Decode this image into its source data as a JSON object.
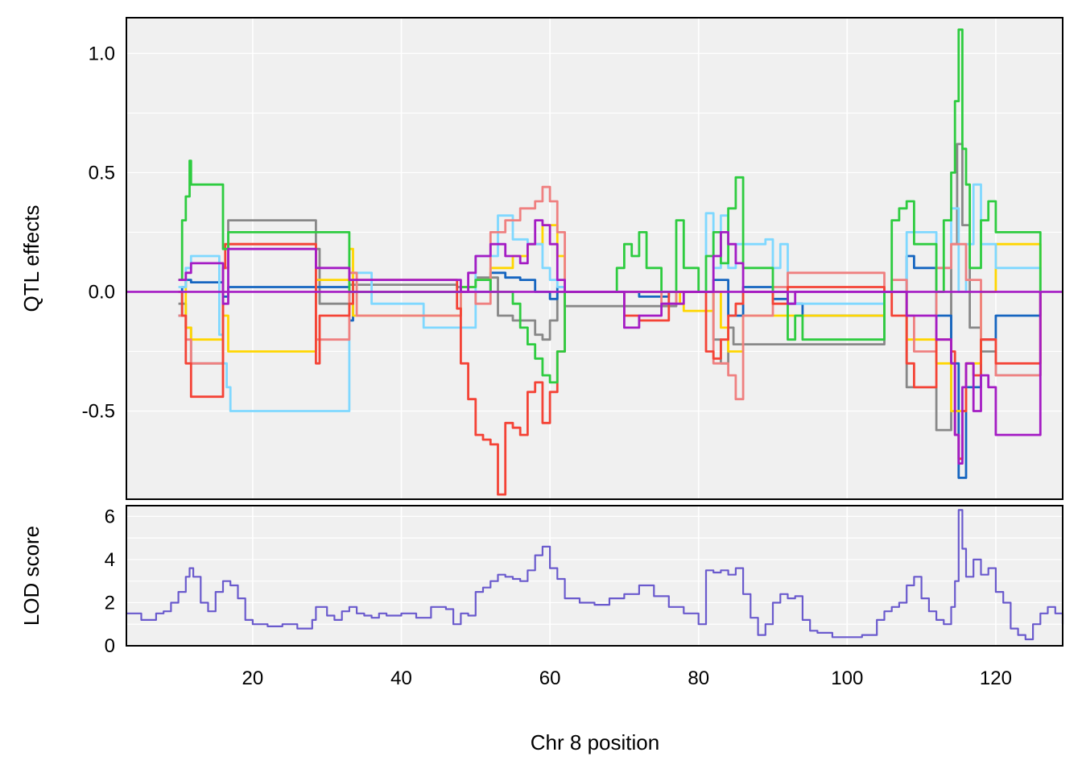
{
  "chart_data": [
    {
      "type": "line",
      "panel": "effects",
      "ylabel": "QTL effects",
      "xlim": [
        3,
        129
      ],
      "ylim": [
        -0.87,
        1.15
      ],
      "yticks": [
        -0.5,
        0.0,
        0.5,
        1.0
      ],
      "ytick_labels": [
        "-0.5",
        "0.0",
        "0.5",
        "1.0"
      ],
      "xticks": [
        20,
        40,
        60,
        80,
        100,
        120
      ],
      "grid": true,
      "series": [
        {
          "color": "#888888",
          "x": [
            10,
            11,
            11.7,
            16,
            16.7,
            28.5,
            29,
            33,
            47.5,
            50,
            53,
            55,
            57,
            58,
            59,
            60,
            61,
            62,
            77,
            82,
            83,
            84,
            84.7,
            105,
            108,
            112,
            114,
            114.8,
            115.5,
            116.5,
            118,
            120,
            126
          ],
          "y": [
            -0.05,
            -0.15,
            -0.3,
            0.1,
            0.3,
            0.18,
            -0.05,
            0.03,
            0.02,
            0.06,
            -0.1,
            -0.12,
            -0.12,
            -0.18,
            -0.2,
            -0.12,
            0.0,
            -0.06,
            0.0,
            -0.2,
            -0.3,
            -0.15,
            -0.22,
            0.0,
            -0.4,
            -0.58,
            0.2,
            0.62,
            0.28,
            -0.15,
            -0.25,
            -0.35,
            0.0
          ]
        },
        {
          "color": "#1565c0",
          "x": [
            10,
            10.5,
            11,
            11.7,
            16,
            16.7,
            33,
            33.5,
            50,
            52,
            54,
            56,
            58,
            60,
            61,
            62,
            70,
            72,
            76,
            80,
            82,
            84,
            86,
            90,
            92,
            94,
            105,
            108,
            109,
            112,
            114,
            115,
            116,
            118,
            120,
            126
          ],
          "y": [
            -0.1,
            0.02,
            0.05,
            0.04,
            -0.02,
            0.02,
            -0.12,
            0.0,
            0.0,
            0.08,
            0.06,
            0.05,
            0.0,
            -0.03,
            0.02,
            0.0,
            0.0,
            -0.02,
            0.0,
            0.0,
            0.05,
            -0.1,
            0.02,
            -0.03,
            -0.05,
            -0.1,
            0.0,
            0.15,
            0.1,
            -0.1,
            -0.3,
            -0.78,
            -0.4,
            -0.2,
            -0.1,
            0.0
          ]
        },
        {
          "color": "#ffd600",
          "x": [
            10,
            11,
            11.7,
            16,
            16.7,
            28.5,
            33,
            33.5,
            48,
            50,
            52,
            55,
            57,
            59,
            61,
            62,
            76,
            77.5,
            78,
            82,
            83,
            84,
            86,
            105,
            108,
            112,
            114,
            116,
            118,
            120,
            126
          ],
          "y": [
            0.05,
            -0.15,
            -0.2,
            -0.1,
            -0.25,
            0.05,
            0.18,
            -0.1,
            0.02,
            0.05,
            0.1,
            0.15,
            0.2,
            0.28,
            0.15,
            0.0,
            0.0,
            -0.05,
            -0.08,
            0.0,
            -0.15,
            -0.25,
            -0.1,
            0.0,
            -0.2,
            -0.3,
            -0.5,
            -0.3,
            0.0,
            0.2,
            0.0
          ]
        },
        {
          "color": "#7fd8ff",
          "x": [
            10,
            11,
            11.7,
            15.5,
            16,
            16.5,
            17,
            33,
            36,
            43,
            50,
            53,
            55,
            57,
            59,
            60,
            61,
            62,
            81,
            82,
            83,
            84,
            85,
            89,
            90,
            91,
            92,
            105,
            108,
            112,
            114,
            115,
            116,
            117,
            118,
            120,
            126
          ],
          "y": [
            0.02,
            0.1,
            0.15,
            -0.18,
            -0.3,
            -0.4,
            -0.5,
            0.08,
            -0.05,
            -0.15,
            0.15,
            0.32,
            0.22,
            0.2,
            0.1,
            0.05,
            0.02,
            0.0,
            0.33,
            0.1,
            0.32,
            0.1,
            0.2,
            0.22,
            0.1,
            0.2,
            -0.05,
            0.0,
            0.25,
            0.1,
            0.35,
            0.0,
            0.2,
            0.45,
            0.2,
            0.1,
            0.0
          ]
        },
        {
          "color": "#ef8080",
          "x": [
            10,
            11,
            11.7,
            16,
            16.7,
            28.5,
            33,
            34,
            48,
            50,
            52,
            54,
            56,
            58,
            59,
            60,
            61,
            62,
            75,
            77,
            80,
            82,
            84,
            85,
            86,
            90,
            92,
            105,
            106,
            108,
            109,
            112,
            114,
            116,
            118,
            120,
            126
          ],
          "y": [
            -0.1,
            -0.2,
            -0.3,
            0.1,
            0.2,
            -0.2,
            0.08,
            -0.1,
            0.0,
            -0.05,
            0.25,
            0.3,
            0.35,
            0.38,
            0.44,
            0.38,
            0.25,
            0.0,
            -0.05,
            0.0,
            0.0,
            -0.3,
            -0.35,
            -0.45,
            -0.1,
            0.02,
            0.08,
            0.0,
            0.05,
            -0.1,
            -0.25,
            0.1,
            0.2,
            0.05,
            -0.2,
            -0.35,
            0.0
          ]
        },
        {
          "color": "#f44336",
          "x": [
            10,
            10.5,
            11,
            11.7,
            16,
            16.3,
            16.7,
            28.5,
            29,
            33,
            33.5,
            47.5,
            48,
            49,
            50,
            51,
            52,
            53,
            54,
            55,
            56,
            57,
            58,
            59,
            60,
            61,
            62,
            70,
            72,
            76,
            80,
            81,
            82,
            83,
            84,
            85,
            86,
            90,
            92,
            105,
            106,
            108,
            109,
            112,
            114,
            114.5,
            115,
            115.5,
            116,
            117,
            118,
            119,
            120,
            126
          ],
          "y": [
            0.0,
            -0.1,
            -0.3,
            -0.44,
            0.1,
            0.2,
            0.2,
            -0.3,
            -0.1,
            -0.05,
            0.05,
            -0.07,
            -0.3,
            -0.45,
            -0.6,
            -0.62,
            -0.64,
            -0.85,
            -0.55,
            -0.57,
            -0.6,
            -0.42,
            -0.38,
            -0.55,
            -0.42,
            -0.25,
            0.0,
            -0.1,
            -0.12,
            0.0,
            0.0,
            -0.25,
            -0.28,
            -0.2,
            -0.1,
            -0.05,
            0.0,
            -0.05,
            0.02,
            0.0,
            -0.1,
            -0.3,
            -0.4,
            -0.2,
            -0.25,
            -0.6,
            -0.7,
            -0.5,
            -0.3,
            -0.35,
            -0.2,
            -0.2,
            -0.3,
            0.0
          ]
        },
        {
          "color": "#2ecc40",
          "x": [
            10,
            10.5,
            11,
            11.5,
            11.7,
            16,
            16.7,
            33,
            48,
            50,
            52,
            55,
            56,
            57,
            58,
            59,
            60,
            61,
            62,
            69,
            70,
            71,
            72,
            73,
            75,
            77,
            78,
            80,
            81,
            82,
            83,
            84,
            85,
            86,
            90,
            92,
            93,
            94,
            95,
            105,
            106,
            107,
            108,
            109,
            112,
            113,
            114,
            114.5,
            115,
            115.5,
            116,
            116.5,
            118,
            119,
            120,
            126
          ],
          "y": [
            0.05,
            0.3,
            0.4,
            0.55,
            0.45,
            0.18,
            0.25,
            0.0,
            0.02,
            0.05,
            0.0,
            -0.05,
            -0.15,
            -0.22,
            -0.28,
            -0.35,
            -0.38,
            -0.25,
            0.0,
            0.1,
            0.2,
            0.15,
            0.25,
            0.1,
            0.0,
            0.3,
            0.1,
            0.0,
            0.15,
            0.25,
            0.12,
            0.35,
            0.48,
            0.1,
            0.0,
            -0.2,
            -0.1,
            -0.2,
            -0.2,
            0.0,
            0.3,
            0.35,
            0.38,
            0.2,
            0.0,
            0.3,
            0.5,
            0.8,
            1.1,
            0.6,
            0.45,
            0.1,
            0.3,
            0.38,
            0.25,
            0.0
          ]
        },
        {
          "color": "#a41cc4",
          "x": [
            10,
            11,
            11.7,
            16,
            16.7,
            28.5,
            33,
            48,
            49,
            50,
            52,
            54,
            56,
            57,
            58,
            59,
            60,
            61,
            62,
            70,
            72,
            75,
            78,
            82,
            83,
            84,
            85,
            86,
            90,
            92,
            93,
            105,
            108,
            112,
            114,
            114.5,
            115,
            115.5,
            116,
            117,
            118,
            119,
            120,
            126
          ],
          "y": [
            0.05,
            0.08,
            0.12,
            -0.05,
            0.18,
            0.1,
            0.05,
            0.0,
            0.08,
            0.15,
            0.2,
            0.15,
            0.12,
            0.2,
            0.3,
            0.28,
            0.2,
            0.05,
            0.0,
            -0.15,
            -0.1,
            -0.05,
            0.0,
            0.15,
            0.25,
            0.2,
            0.12,
            0.0,
            0.0,
            -0.05,
            0.0,
            0.0,
            -0.1,
            -0.2,
            -0.3,
            -0.6,
            -0.72,
            -0.4,
            -0.3,
            -0.5,
            -0.35,
            -0.4,
            -0.6,
            0.0
          ]
        }
      ]
    },
    {
      "type": "line",
      "panel": "lod",
      "ylabel": "LOD score",
      "xlabel": "Chr 8 position",
      "xlim": [
        3,
        129
      ],
      "ylim": [
        0,
        6.5
      ],
      "yticks": [
        0,
        2,
        4,
        6
      ],
      "ytick_labels": [
        "0",
        "2",
        "4",
        "6"
      ],
      "xticks": [
        20,
        40,
        60,
        80,
        100,
        120
      ],
      "xtick_labels": [
        "20",
        "40",
        "60",
        "80",
        "100",
        "120"
      ],
      "grid": true,
      "series": [
        {
          "color": "#6a5acd",
          "x": [
            3,
            4,
            5,
            7,
            8,
            9,
            10,
            11,
            11.5,
            12,
            13,
            14,
            15,
            16,
            17,
            18,
            19,
            20,
            22,
            24,
            26,
            28,
            28.5,
            29,
            30,
            31,
            32,
            33,
            34,
            35,
            36,
            37,
            38,
            40,
            42,
            44,
            46,
            47,
            48,
            49,
            50,
            51,
            52,
            53,
            54,
            55,
            56,
            57,
            58,
            59,
            60,
            61,
            62,
            64,
            66,
            68,
            70,
            72,
            74,
            76,
            78,
            80,
            81,
            82,
            83,
            84,
            85,
            86,
            87,
            88,
            89,
            90,
            91,
            92,
            93,
            94,
            95,
            96,
            98,
            100,
            102,
            104,
            105,
            106,
            107,
            108,
            109,
            110,
            111,
            112,
            113,
            114,
            114.5,
            115,
            115.5,
            116,
            117,
            118,
            119,
            120,
            121,
            122,
            123,
            124,
            125,
            126,
            127,
            128,
            129
          ],
          "y": [
            1.5,
            1.5,
            1.2,
            1.5,
            1.6,
            2.0,
            2.5,
            3.2,
            3.6,
            3.2,
            2.0,
            1.6,
            2.5,
            3.0,
            2.8,
            2.2,
            1.2,
            1.0,
            0.9,
            1.0,
            0.8,
            1.2,
            1.8,
            1.8,
            1.4,
            1.2,
            1.6,
            1.8,
            1.5,
            1.4,
            1.3,
            1.5,
            1.4,
            1.5,
            1.3,
            1.8,
            1.7,
            1.0,
            1.5,
            1.4,
            2.5,
            2.7,
            3.0,
            3.3,
            3.2,
            3.1,
            3.0,
            3.5,
            4.2,
            4.6,
            3.6,
            3.1,
            2.2,
            2.0,
            1.9,
            2.2,
            2.4,
            2.8,
            2.3,
            1.8,
            1.5,
            1.0,
            3.5,
            3.4,
            3.5,
            3.3,
            3.6,
            2.4,
            1.3,
            0.5,
            1.0,
            2.0,
            2.4,
            2.2,
            2.3,
            1.2,
            0.7,
            0.6,
            0.4,
            0.4,
            0.5,
            1.2,
            1.6,
            1.8,
            2.0,
            2.8,
            3.2,
            2.2,
            1.6,
            1.2,
            1.0,
            1.8,
            3.0,
            6.3,
            4.5,
            3.2,
            4.0,
            3.3,
            3.6,
            2.5,
            2.0,
            0.8,
            0.5,
            0.3,
            1.0,
            1.5,
            1.8,
            1.5,
            1.0
          ]
        }
      ]
    }
  ]
}
